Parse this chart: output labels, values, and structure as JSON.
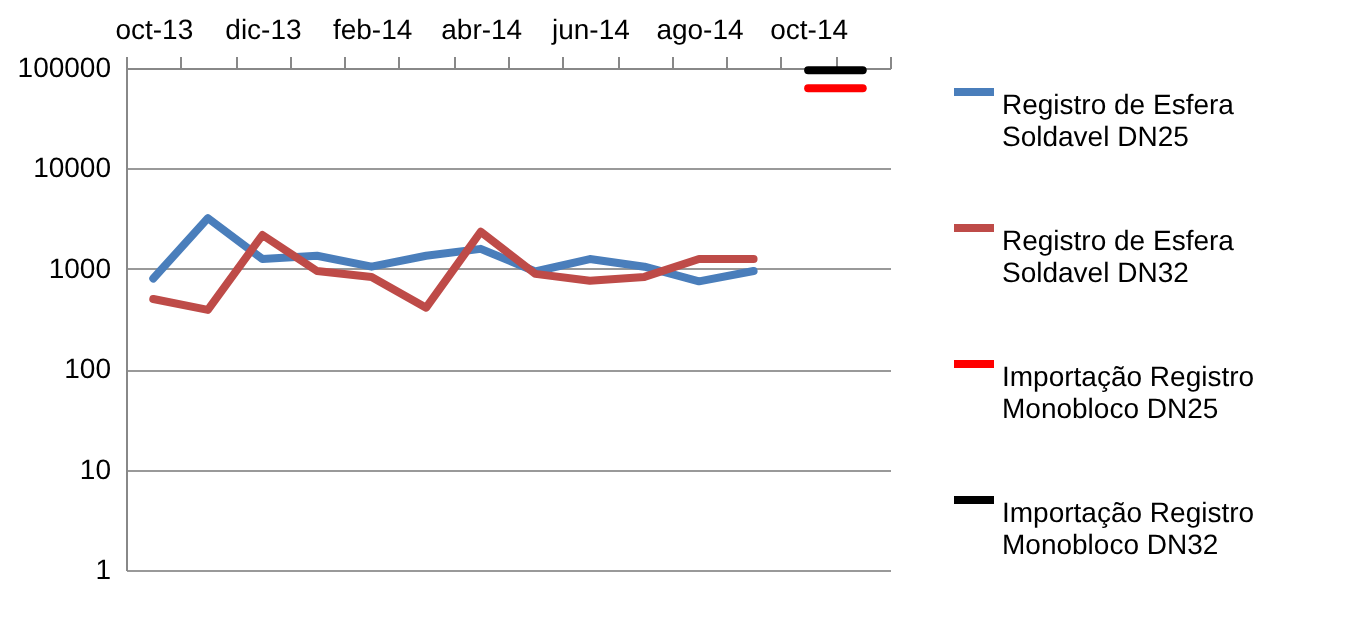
{
  "chart_data": {
    "type": "line",
    "categories": [
      "oct-13",
      null,
      "dic-13",
      null,
      "feb-14",
      null,
      "abr-14",
      null,
      "jun-14",
      null,
      "ago-14",
      null,
      "oct-14",
      null
    ],
    "series": [
      {
        "name": "Registro de Esfera Soldavel DN25",
        "color": "#4a7ebb",
        "values": [
          800,
          3200,
          1250,
          1350,
          1050,
          1350,
          1580,
          940,
          1250,
          1050,
          750,
          950,
          null,
          null
        ]
      },
      {
        "name": "Registro de Esfera Soldavel DN32",
        "color": "#be4b48",
        "values": [
          500,
          390,
          2170,
          950,
          830,
          410,
          2340,
          890,
          760,
          830,
          1250,
          1250,
          null,
          null
        ]
      },
      {
        "name": "Importação Registro Monobloco DN25",
        "color": "#ff0000",
        "values": [
          null,
          null,
          null,
          null,
          null,
          null,
          null,
          null,
          null,
          null,
          null,
          null,
          63000,
          63000
        ]
      },
      {
        "name": "Importação Registro Monobloco DN32",
        "color": "#000000",
        "values": [
          null,
          null,
          null,
          null,
          null,
          null,
          null,
          null,
          null,
          null,
          null,
          null,
          95000,
          95000
        ]
      }
    ],
    "log": true,
    "ylim": [
      1,
      100000
    ],
    "yticks": [
      1,
      10,
      100,
      1000,
      10000,
      100000
    ],
    "grid": "y",
    "legend": "right",
    "marker": "none",
    "line_style": "solid"
  }
}
